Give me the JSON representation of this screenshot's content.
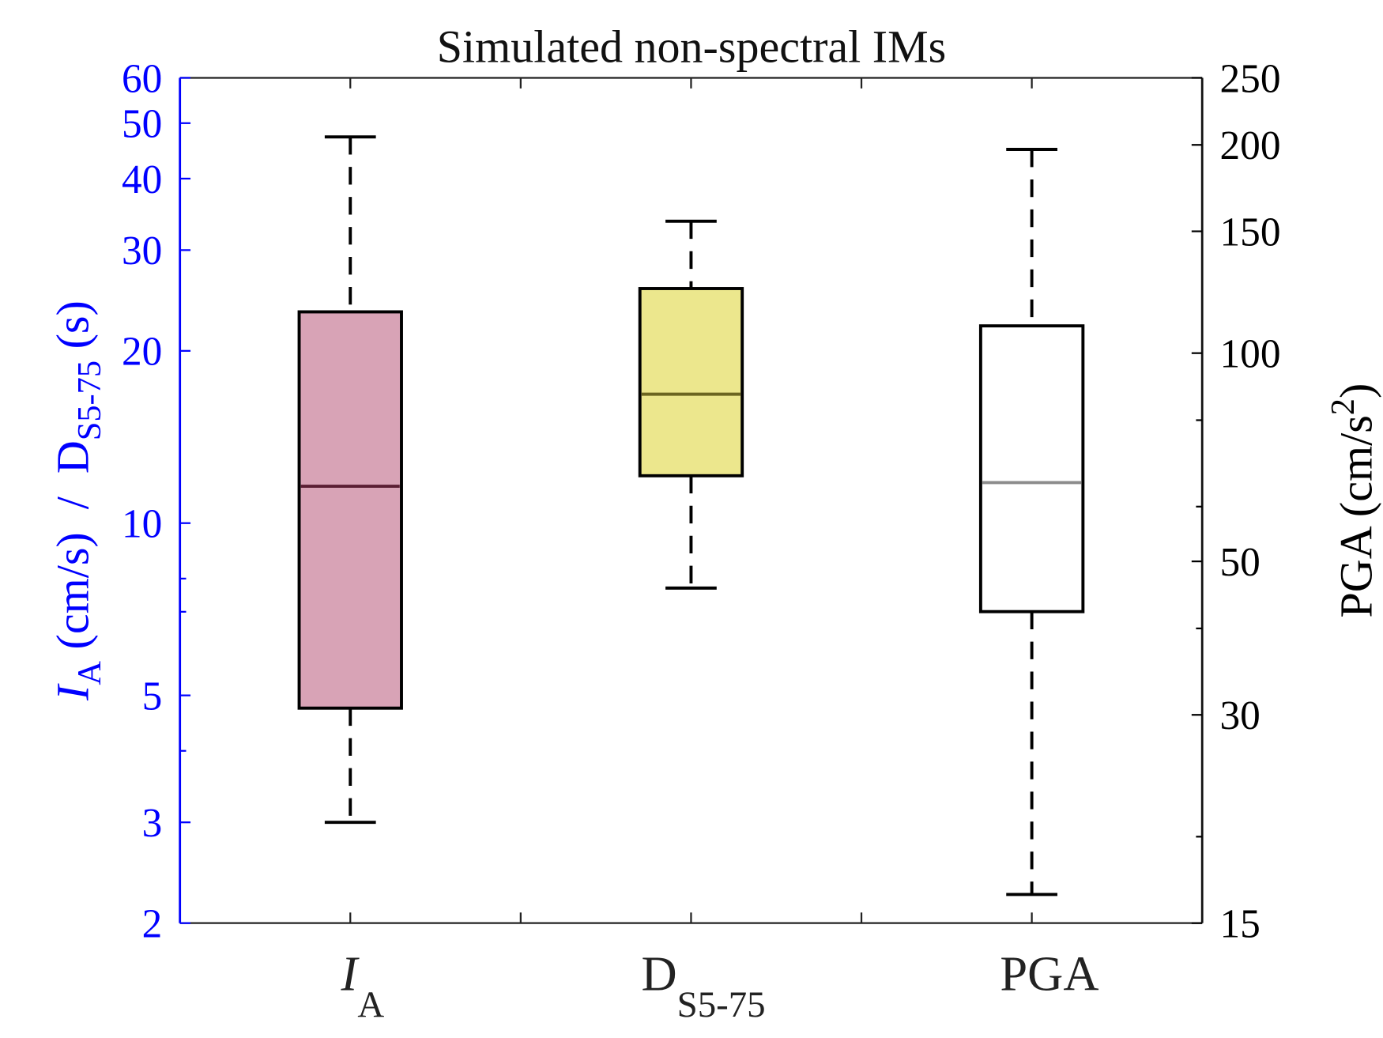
{
  "chart_data": {
    "type": "box",
    "title": "Simulated non-spectral IMs",
    "categories": [
      {
        "main": "I",
        "sub": "A",
        "italic": true
      },
      {
        "main": "D",
        "sub": "S5-75",
        "italic": false
      },
      {
        "main": "PGA",
        "sub": "",
        "italic": false
      }
    ],
    "left_axis": {
      "label_parts": {
        "i": "I",
        "i_sub": "A",
        "mid": " (cm/s)  /  D",
        "d_sub": "S5-75",
        "end": " (s)"
      },
      "scale": "log",
      "ylim": [
        2,
        60
      ],
      "ticks": [
        2,
        3,
        5,
        10,
        20,
        30,
        40,
        50,
        60
      ],
      "tick_labels": [
        "2",
        "3",
        "5",
        "10",
        "20",
        "30",
        "40",
        "50",
        "60"
      ],
      "minor_ticks": [
        4,
        7,
        8
      ],
      "color": "#0000ff"
    },
    "right_axis": {
      "label_parts": {
        "main": "PGA (cm/s",
        "sup": "2",
        "end": ")"
      },
      "scale": "log",
      "ylim": [
        15,
        250
      ],
      "ticks": [
        15,
        30,
        50,
        100,
        150,
        200,
        250
      ],
      "tick_labels": [
        "15",
        "30",
        "50",
        "100",
        "150",
        "200",
        "250"
      ],
      "minor_ticks": [
        20,
        40,
        60,
        80
      ],
      "color": "#000000"
    },
    "series": [
      {
        "category": "I_A",
        "axis": "left",
        "whisker_low": 3.0,
        "q1": 4.75,
        "median": 11.6,
        "q3": 23.4,
        "whisker_high": 47.3,
        "fill": "#d8a3b6",
        "median_color": "#5a1e33"
      },
      {
        "category": "D_S5-75",
        "axis": "left",
        "whisker_low": 7.7,
        "q1": 12.1,
        "median": 16.8,
        "q3": 25.7,
        "whisker_high": 33.7,
        "fill": "#ece78d",
        "median_color": "#6b6520"
      },
      {
        "category": "PGA",
        "axis": "right",
        "whisker_low": 16.5,
        "q1": 42.3,
        "median": 65,
        "q3": 109.5,
        "whisker_high": 197,
        "fill": "#ffffff",
        "median_color": "#8c8c8c"
      }
    ],
    "grid": false
  }
}
